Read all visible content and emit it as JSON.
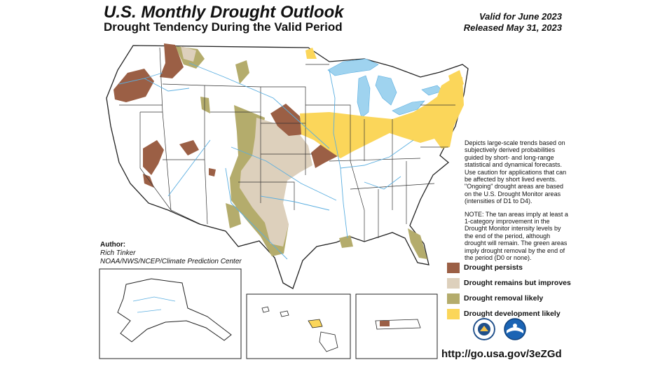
{
  "header": {
    "title": "U.S. Monthly Drought Outlook",
    "subtitle": "Drought Tendency During the Valid Period",
    "valid_for": "Valid for June 2023",
    "released": "Released May 31, 2023"
  },
  "description": {
    "paragraph1": "Depicts large-scale trends based on subjectively derived probabilities guided by short- and long-range statistical and dynamical forecasts. Use caution for applications that can be affected by short lived events. \"Ongoing\" drought areas are based on the U.S. Drought Monitor areas (intensities of D1 to D4).",
    "paragraph2": "NOTE: The tan areas imply at least a 1-category improvement in the Drought Monitor intensity levels by the end of the period, although drought will remain. The green areas imply drought removal by the end of the period (D0 or none)."
  },
  "author": {
    "heading": "Author:",
    "name": "Rich Tinker",
    "org": "NOAA/NWS/NCEP/Climate Prediction Center"
  },
  "legend": [
    {
      "label": "Drought persists",
      "color": "#9b5f45"
    },
    {
      "label": "Drought remains but improves",
      "color": "#ddd0bc"
    },
    {
      "label": "Drought removal likely",
      "color": "#b4ac6c"
    },
    {
      "label": "Drought development likely",
      "color": "#fbd65a"
    }
  ],
  "colors": {
    "water": "#9fd3ef",
    "river": "#5aaee0",
    "border": "#222222",
    "usda_logo": "#1f4f8a",
    "noaa_logo": "#1b64b4"
  },
  "logos": [
    "usda-seal-icon",
    "noaa-logo-icon"
  ],
  "footer": {
    "url": "http://go.usa.gov/3eZGd"
  }
}
